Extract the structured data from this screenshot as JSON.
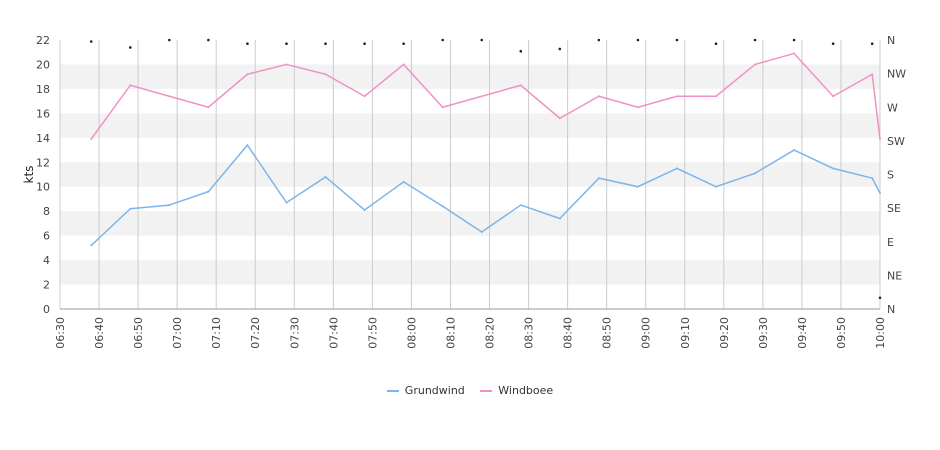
{
  "chart_data": {
    "type": "line",
    "ylabel": "kts",
    "ylim": [
      0,
      22
    ],
    "yticks": [
      0,
      2,
      4,
      6,
      8,
      10,
      12,
      14,
      16,
      18,
      20,
      22
    ],
    "xlim": [
      "06:30",
      "10:00"
    ],
    "xticks": [
      "06:30",
      "06:40",
      "06:50",
      "07:00",
      "07:10",
      "07:20",
      "07:30",
      "07:40",
      "07:50",
      "08:00",
      "08:10",
      "08:20",
      "08:30",
      "08:40",
      "08:50",
      "09:00",
      "09:10",
      "09:20",
      "09:30",
      "09:40",
      "09:50",
      "10:00"
    ],
    "right_axis_labels": [
      "N",
      "NE",
      "E",
      "SE",
      "S",
      "SW",
      "W",
      "NW",
      "N"
    ],
    "grid": true,
    "legend_position": "bottom",
    "colors": {
      "grundwind": "#7cb5ec",
      "windboee": "#f191c5",
      "band": "#f2f2f2",
      "grid": "#cccccc"
    },
    "x": [
      "06:38",
      "06:48",
      "06:58",
      "07:08",
      "07:18",
      "07:28",
      "07:38",
      "07:48",
      "07:58",
      "08:08",
      "08:18",
      "08:28",
      "08:38",
      "08:48",
      "08:58",
      "09:08",
      "09:18",
      "09:28",
      "09:38",
      "09:48",
      "09:58",
      "10:00"
    ],
    "series": [
      {
        "name": "Grundwind",
        "values": [
          5.2,
          8.2,
          8.5,
          9.6,
          13.4,
          8.7,
          10.8,
          8.1,
          10.4,
          8.4,
          6.3,
          8.5,
          7.4,
          10.7,
          10.0,
          11.5,
          10.0,
          11.1,
          13.0,
          11.5,
          10.7,
          9.5
        ]
      },
      {
        "name": "Windboee",
        "values": [
          13.9,
          18.3,
          17.4,
          16.5,
          19.2,
          20.0,
          19.2,
          17.4,
          20.0,
          16.5,
          17.4,
          18.3,
          15.6,
          17.4,
          16.5,
          17.4,
          17.4,
          20.0,
          20.9,
          17.4,
          19.2,
          13.9
        ]
      }
    ],
    "direction_markers": [
      358,
      350,
      360,
      360,
      355,
      355,
      355,
      355,
      355,
      360,
      360,
      345,
      348,
      360,
      360,
      360,
      355,
      360,
      360,
      355,
      355,
      15
    ]
  },
  "legend": {
    "grundwind_label": "Grundwind",
    "windboee_label": "Windboee"
  }
}
